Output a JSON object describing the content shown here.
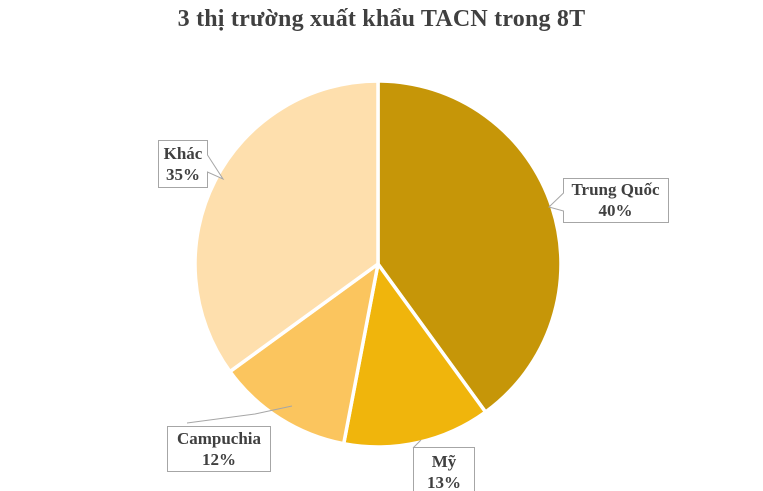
{
  "page": {
    "background": "#FFFFFF"
  },
  "chart_data": {
    "type": "pie",
    "title": "3 thị trường xuất khẩu TACN trong 8T",
    "unit": "%",
    "direction": "clockwise",
    "start_angle_deg": 0,
    "legend_position": "none",
    "labels_style": "callout-boxes",
    "title_color": "#404040",
    "label_text_color": "#404040",
    "callout_fill": "#FFFFFF",
    "callout_border_color": "#A6A6A6",
    "slice_divider_color": "#FFFFFF",
    "segments": [
      {
        "label": "Trung Quốc",
        "value": 40,
        "display": "40%",
        "color": "#C69608"
      },
      {
        "label": "Mỹ",
        "value": 13,
        "display": "13%",
        "color": "#F0B50C"
      },
      {
        "label": "Campuchia",
        "value": 12,
        "display": "12%",
        "color": "#FBC55E"
      },
      {
        "label": "Khác",
        "value": 35,
        "display": "35%",
        "color": "#FEDFAD"
      }
    ]
  }
}
